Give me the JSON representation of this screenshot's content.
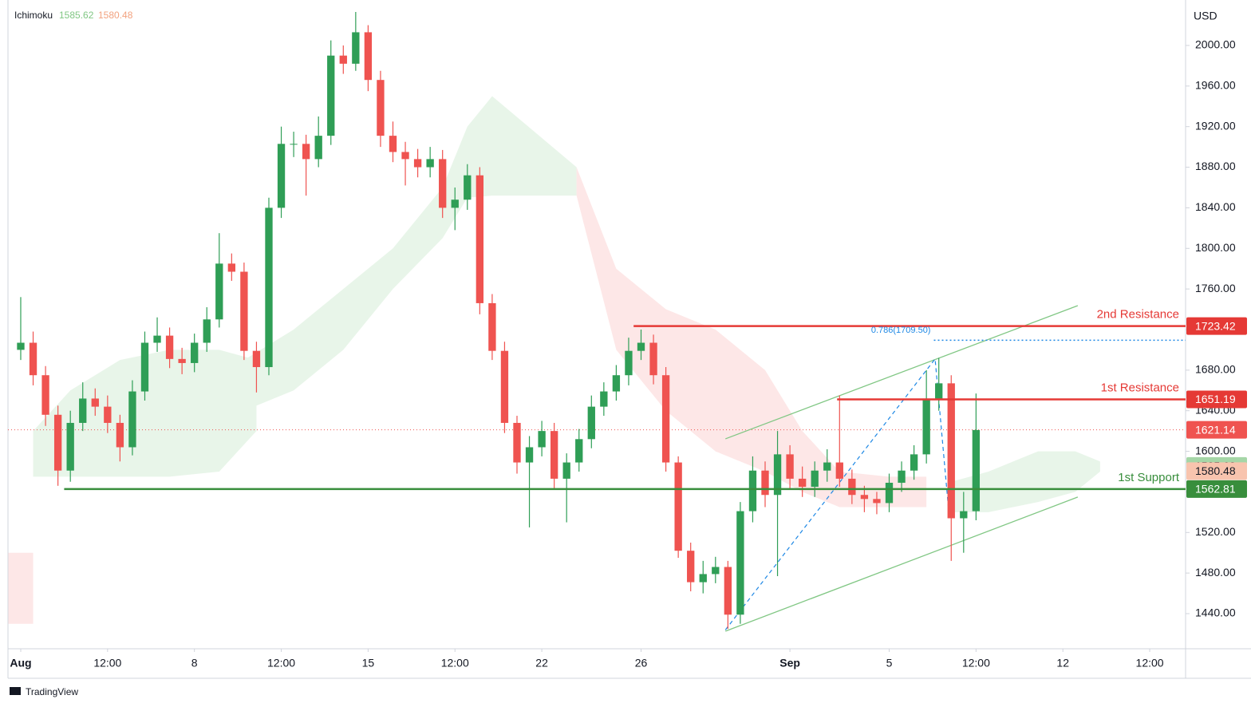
{
  "chart_data": {
    "type": "candlestick",
    "axis_unit": "USD",
    "indicator": {
      "label": "Ichimoku",
      "values": [
        1585.62,
        1580.48
      ],
      "colors": [
        "#81c784",
        "#f2a27f"
      ]
    },
    "x": [
      0,
      0.5,
      1,
      1.5,
      2,
      2.5,
      3,
      3.5,
      4,
      4.5,
      5,
      5.5,
      6,
      6.5,
      7,
      7.5,
      8,
      8.5,
      9,
      9.5,
      10,
      10.5,
      11,
      11.5,
      12,
      12.5,
      13,
      13.5,
      14,
      14.5,
      15,
      15.5,
      16,
      16.5,
      17,
      17.5,
      18,
      18.5,
      19,
      19.5,
      20,
      20.5,
      21,
      21.5,
      22,
      22.5,
      23,
      23.5,
      24,
      24.5,
      25,
      25.5,
      26,
      26.5,
      27,
      27.5,
      28,
      28.5,
      29,
      29.5,
      30,
      30.5,
      31,
      31.5,
      32,
      32.5,
      33,
      33.5,
      34,
      34.5,
      35,
      35.5,
      36,
      36.5,
      37,
      37.5,
      38,
      38.5
    ],
    "open": [
      1700,
      1707,
      1675,
      1636,
      1581,
      1628,
      1652,
      1644,
      1628,
      1604,
      1659,
      1707,
      1714,
      1691,
      1687,
      1707,
      1730,
      1785,
      1777,
      1699,
      1683,
      1840,
      1903,
      1903,
      1888,
      1911,
      1990,
      1982,
      2013,
      1966,
      1911,
      1895,
      1888,
      1880,
      1888,
      1840,
      1848,
      1872,
      1746,
      1699,
      1628,
      1589,
      1604,
      1620,
      1573,
      1589,
      1612,
      1644,
      1659,
      1675,
      1699,
      1707,
      1675,
      1589,
      1502,
      1471,
      1479,
      1486,
      1439,
      1541,
      1581,
      1557,
      1597,
      1573,
      1565,
      1581,
      1589,
      1573,
      1557,
      1553,
      1549,
      1569,
      1581,
      1597,
      1652,
      1667,
      1534,
      1541
    ],
    "high": [
      1752,
      1718,
      1684,
      1645,
      1640,
      1668,
      1662,
      1655,
      1636,
      1670,
      1718,
      1732,
      1722,
      1702,
      1716,
      1742,
      1815,
      1795,
      1786,
      1708,
      1850,
      1920,
      1915,
      1912,
      1930,
      2005,
      2000,
      2033,
      2020,
      1975,
      1925,
      1905,
      1898,
      1900,
      1897,
      1860,
      1883,
      1880,
      1755,
      1708,
      1635,
      1615,
      1630,
      1628,
      1598,
      1622,
      1655,
      1668,
      1685,
      1712,
      1720,
      1715,
      1683,
      1595,
      1510,
      1492,
      1496,
      1492,
      1550,
      1595,
      1590,
      1620,
      1606,
      1585,
      1590,
      1602,
      1655,
      1582,
      1566,
      1560,
      1578,
      1590,
      1606,
      1680,
      1692,
      1675,
      1560,
      1657
    ],
    "low": [
      1690,
      1665,
      1625,
      1566,
      1570,
      1620,
      1635,
      1618,
      1590,
      1596,
      1650,
      1698,
      1682,
      1676,
      1678,
      1698,
      1722,
      1768,
      1690,
      1658,
      1675,
      1830,
      1890,
      1852,
      1880,
      1902,
      1972,
      1975,
      1955,
      1900,
      1885,
      1862,
      1870,
      1870,
      1830,
      1818,
      1838,
      1735,
      1690,
      1618,
      1578,
      1525,
      1595,
      1563,
      1530,
      1580,
      1603,
      1635,
      1650,
      1665,
      1690,
      1666,
      1580,
      1495,
      1462,
      1460,
      1470,
      1425,
      1430,
      1530,
      1545,
      1477,
      1563,
      1555,
      1555,
      1570,
      1565,
      1548,
      1540,
      1538,
      1540,
      1560,
      1572,
      1588,
      1640,
      1492,
      1500,
      1532
    ],
    "close": [
      1707,
      1675,
      1636,
      1581,
      1628,
      1652,
      1644,
      1628,
      1604,
      1659,
      1707,
      1714,
      1691,
      1687,
      1707,
      1730,
      1785,
      1777,
      1699,
      1683,
      1840,
      1903,
      1903,
      1888,
      1911,
      1990,
      1982,
      2013,
      1966,
      1911,
      1895,
      1888,
      1880,
      1888,
      1840,
      1848,
      1872,
      1746,
      1699,
      1628,
      1589,
      1604,
      1620,
      1573,
      1589,
      1612,
      1644,
      1659,
      1675,
      1699,
      1707,
      1675,
      1589,
      1502,
      1471,
      1479,
      1486,
      1439,
      1541,
      1581,
      1557,
      1597,
      1573,
      1565,
      1581,
      1589,
      1573,
      1557,
      1553,
      1549,
      1569,
      1581,
      1597,
      1652,
      1667,
      1534,
      1541,
      1621
    ],
    "up_color": "#2f9e56",
    "down_color": "#ef5350",
    "cloud": [
      {
        "color": "#e8f5e9",
        "x": [
          0.5,
          2,
          4,
          6,
          8,
          9.5
        ],
        "upper": [
          1620,
          1660,
          1690,
          1700,
          1700,
          1690
        ],
        "lower": [
          1575,
          1575,
          1575,
          1575,
          1580,
          1620
        ]
      },
      {
        "color": "#e8f5e9",
        "x": [
          9,
          11,
          13,
          15,
          17,
          18,
          19,
          22.4
        ],
        "upper": [
          1690,
          1720,
          1760,
          1800,
          1860,
          1920,
          1950,
          1880
        ],
        "lower": [
          1640,
          1660,
          1700,
          1760,
          1810,
          1850,
          1852,
          1852
        ]
      },
      {
        "color": "#fde7e7",
        "x": [
          -0.5,
          0.5
        ],
        "upper": [
          1500,
          1500
        ],
        "lower": [
          1430,
          1430
        ]
      },
      {
        "color": "#fde7e7",
        "x": [
          22.4,
          24,
          26,
          28,
          30,
          31.5,
          33,
          35,
          36.5
        ],
        "upper": [
          1880,
          1780,
          1740,
          1720,
          1680,
          1620,
          1580,
          1575,
          1575
        ],
        "lower": [
          1852,
          1700,
          1640,
          1600,
          1580,
          1560,
          1545,
          1545,
          1545
        ]
      },
      {
        "color": "#e8f5e9",
        "x": [
          37.5,
          39,
          41,
          42.5,
          43.5
        ],
        "upper": [
          1570,
          1580,
          1600,
          1600,
          1590
        ],
        "lower": [
          1540,
          1540,
          1550,
          1560,
          1580
        ]
      }
    ],
    "levels": [
      {
        "name": "2nd Resistance",
        "value": 1723.42,
        "start": 24.7,
        "color": "#e53935"
      },
      {
        "name": "1st Resistance",
        "value": 1651.19,
        "start": 32.9,
        "color": "#e53935"
      },
      {
        "name": "1st Support",
        "value": 1562.81,
        "start": 1.75,
        "color": "#388e3c"
      }
    ],
    "fib": {
      "label": "0.786(1709.50)",
      "value": 1709.5,
      "start": 36.8,
      "color": "#1e88e5"
    },
    "last_price": 1621.14,
    "channel": {
      "color": "#81c784",
      "x": [
        28.4,
        42.6
      ],
      "upper": [
        1612.3,
        1743.6
      ],
      "lower": [
        1422.7,
        1554.9
      ]
    },
    "swing": {
      "color": "#1e88e5",
      "x": [
        28.4,
        36.85,
        37.4
      ],
      "values": [
        1424,
        1691,
        1541
      ]
    },
    "xlim": [
      -0.514,
      46.945
    ],
    "ylim": [
      1405.4,
      2044.8
    ],
    "yticks": [
      {
        "value": 2000,
        "label": "2000.00"
      },
      {
        "value": 1960,
        "label": "1960.00"
      },
      {
        "value": 1920,
        "label": "1920.00"
      },
      {
        "value": 1880,
        "label": "1880.00"
      },
      {
        "value": 1840,
        "label": "1840.00"
      },
      {
        "value": 1800,
        "label": "1800.00"
      },
      {
        "value": 1760,
        "label": "1760.00"
      },
      {
        "value": 1720,
        "label": "1720.00"
      },
      {
        "value": 1680,
        "label": "1680.00"
      },
      {
        "value": 1640,
        "label": "1640.00"
      },
      {
        "value": 1600,
        "label": "1600.00"
      },
      {
        "value": 1560,
        "label": "1560.00"
      },
      {
        "value": 1520,
        "label": "1520.00"
      },
      {
        "value": 1480,
        "label": "1480.00"
      },
      {
        "value": 1440,
        "label": "1440.00"
      }
    ],
    "xticks": [
      {
        "value": 0,
        "label": "Aug"
      },
      {
        "value": 3.5,
        "label": "12:00"
      },
      {
        "value": 7,
        "label": "8"
      },
      {
        "value": 10.5,
        "label": "12:00"
      },
      {
        "value": 14,
        "label": "15"
      },
      {
        "value": 17.5,
        "label": "12:00"
      },
      {
        "value": 21,
        "label": "22"
      },
      {
        "value": 25,
        "label": "26"
      },
      {
        "value": 31,
        "label": "Sep"
      },
      {
        "value": 35,
        "label": "5"
      },
      {
        "value": 38.5,
        "label": "12:00"
      },
      {
        "value": 42,
        "label": "12"
      },
      {
        "value": 45.5,
        "label": "12:00"
      }
    ],
    "footer": "TradingView"
  }
}
